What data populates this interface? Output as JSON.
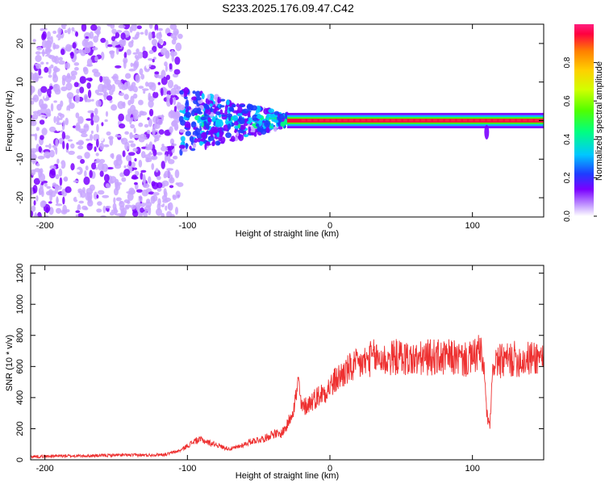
{
  "title": "S233.2025.176.09.47.C42",
  "chart_data": [
    {
      "type": "heatmap",
      "xlabel": "Height of straight line (km)",
      "ylabel": "Frequency (Hz)",
      "xlim": [
        -210,
        150
      ],
      "ylim": [
        -25,
        25
      ],
      "x_ticks": [
        -200,
        -100,
        0,
        100
      ],
      "y_ticks": [
        -20,
        -10,
        0,
        10,
        20
      ],
      "colorbar": {
        "label": "Normalized spectral amplitude",
        "range": [
          0,
          1
        ],
        "ticks": [
          0.0,
          0.2,
          0.4,
          0.6,
          0.8
        ],
        "tick_labels": [
          "0.0",
          "0.2",
          "0.4",
          "0.6",
          "0.8"
        ],
        "colors": [
          "#ffffff",
          "#c9a7ff",
          "#7a00ff",
          "#1e3cff",
          "#00c8ff",
          "#00ff80",
          "#50ff00",
          "#d2ff00",
          "#ffd000",
          "#ff8000",
          "#ff0040",
          "#ff2080"
        ]
      },
      "regions": [
        {
          "x_range": [
            -210,
            -105
          ],
          "y_range": [
            -25,
            25
          ],
          "description_level": 0.15
        },
        {
          "x_range": [
            -105,
            -30
          ],
          "y_range": [
            -8,
            6
          ],
          "description_level": 0.3
        },
        {
          "x_range": [
            -30,
            150
          ],
          "y_range": [
            -1.5,
            1.5
          ],
          "description_level": 0.95
        }
      ]
    },
    {
      "type": "line",
      "xlabel": "Height of straight line (km)",
      "ylabel": "SNR (10 * v/v)",
      "xlim": [
        -210,
        150
      ],
      "ylim": [
        0,
        1250
      ],
      "x_ticks": [
        -200,
        -100,
        0,
        100
      ],
      "y_ticks": [
        0,
        200,
        400,
        600,
        800,
        1000,
        1200
      ],
      "series": [
        {
          "color": "#ee3030",
          "x": [
            -210,
            -190,
            -170,
            -150,
            -130,
            -115,
            -105,
            -100,
            -95,
            -90,
            -85,
            -80,
            -75,
            -70,
            -65,
            -60,
            -55,
            -50,
            -45,
            -40,
            -35,
            -30,
            -25,
            -22,
            -20,
            -15,
            -10,
            -5,
            0,
            5,
            10,
            15,
            20,
            25,
            30,
            35,
            40,
            45,
            50,
            55,
            60,
            65,
            70,
            75,
            80,
            85,
            90,
            95,
            100,
            105,
            108,
            110,
            112,
            115,
            120,
            125,
            130,
            135,
            140,
            145,
            150
          ],
          "values": [
            20,
            25,
            25,
            30,
            30,
            35,
            60,
            90,
            120,
            130,
            110,
            100,
            80,
            70,
            80,
            100,
            120,
            130,
            140,
            170,
            160,
            220,
            350,
            500,
            330,
            360,
            400,
            430,
            470,
            520,
            560,
            590,
            610,
            630,
            660,
            650,
            640,
            660,
            660,
            650,
            640,
            650,
            660,
            660,
            650,
            660,
            650,
            640,
            650,
            700,
            600,
            300,
            200,
            640,
            630,
            640,
            650,
            640,
            650,
            660,
            670
          ]
        }
      ]
    }
  ]
}
